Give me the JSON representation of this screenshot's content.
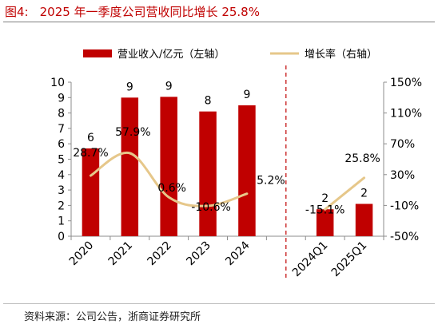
{
  "figure": {
    "number": "图4:",
    "title": "2025 年一季度公司营收同比增长 25.8%",
    "source": "资料来源：公司公告，浙商证券研究所"
  },
  "colors": {
    "bar": "#c00000",
    "line": "#e6c78a",
    "title": "#c00000",
    "divider": "#c00000"
  },
  "chart_data": {
    "type": "bar",
    "categories": [
      "2020",
      "2021",
      "2022",
      "2023",
      "2024",
      "2024Q1",
      "2025Q1"
    ],
    "series": [
      {
        "name": "营业收入/亿元（左轴）",
        "type": "bar",
        "axis": "left",
        "values": [
          5.7,
          9.0,
          9.05,
          8.1,
          8.5,
          null,
          null
        ],
        "labels": [
          "6",
          "9",
          "9",
          "8",
          "9",
          "",
          ""
        ]
      },
      {
        "name": "营业收入/亿元（左轴）",
        "type": "bar",
        "axis": "left",
        "values": [
          null,
          null,
          null,
          null,
          null,
          1.75,
          2.1
        ],
        "labels": [
          "",
          "",
          "",
          "",
          "",
          "2",
          "2"
        ]
      },
      {
        "name": "增长率（右轴）",
        "type": "line",
        "axis": "right",
        "values": [
          28.7,
          57.9,
          0.6,
          -10.6,
          5.2,
          null,
          null
        ],
        "labels": [
          "28.7%",
          "57.9%",
          "0.6%",
          "-10.6%",
          "5.2%",
          "",
          ""
        ]
      },
      {
        "name": "增长率（右轴）",
        "type": "line",
        "axis": "right",
        "values": [
          null,
          null,
          null,
          null,
          null,
          -15.1,
          25.8
        ],
        "labels": [
          "",
          "",
          "",
          "",
          "",
          "-15.1%",
          "25.8%"
        ]
      }
    ],
    "legend": [
      "营业收入/亿元（左轴）",
      "增长率（右轴）"
    ],
    "y_left": {
      "min": 0,
      "max": 10,
      "ticks": [
        "0",
        "1",
        "2",
        "3",
        "4",
        "5",
        "6",
        "7",
        "8",
        "9",
        "10"
      ]
    },
    "y_right": {
      "min": -50,
      "max": 150,
      "ticks": [
        "-50%",
        "-10%",
        "30%",
        "70%",
        "110%",
        "150%"
      ]
    },
    "legend_position": "top",
    "grid": false
  }
}
